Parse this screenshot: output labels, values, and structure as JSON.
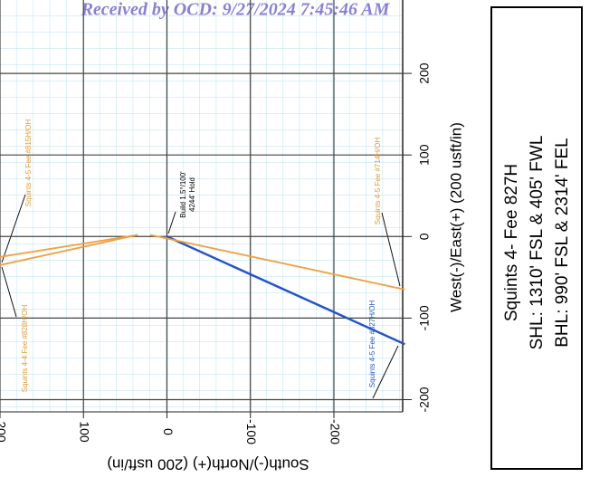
{
  "chart_data": {
    "type": "line",
    "stamp": "Received by OCD: 9/27/2024 7:45:46 AM",
    "xlabel": "South(-)/North(+) (200 usft/in)",
    "ylabel": "West(-)/East(+) (200 usft/in)",
    "info": [
      "Squints 4- Fee 827H",
      "SHL: 1310' FSL & 405' FWL",
      "BHL: 990' FSL & 2314' FEL"
    ],
    "xlim": [
      200,
      -290
    ],
    "ylim": [
      -215,
      290
    ],
    "xticks": [
      200,
      100,
      0,
      -100,
      -200
    ],
    "yticks": [
      200,
      100,
      0,
      -100,
      -200
    ],
    "grid": true,
    "series": [
      {
        "name": "Squints 4-5 Fee #827H/OH",
        "color": "#2255cc",
        "x": [
          0,
          -285
        ],
        "values": [
          0,
          -132
        ]
      },
      {
        "name": "Squints 4-5 Fee #714H/OH",
        "color": "#f0a040",
        "x": [
          20,
          -285
        ],
        "values": [
          2,
          -65
        ]
      },
      {
        "name": "Squints 4-5 Fee #815H/OH",
        "color": "#f0a040",
        "x": [
          35,
          200
        ],
        "values": [
          2,
          -25
        ]
      },
      {
        "name": "Squints 4-4 Fee #828H/OH",
        "color": "#f0a040",
        "x": [
          35,
          200
        ],
        "values": [
          2,
          -35
        ]
      }
    ],
    "annotations": [
      "Build 1.5°/100'",
      "4244' Hold"
    ]
  }
}
